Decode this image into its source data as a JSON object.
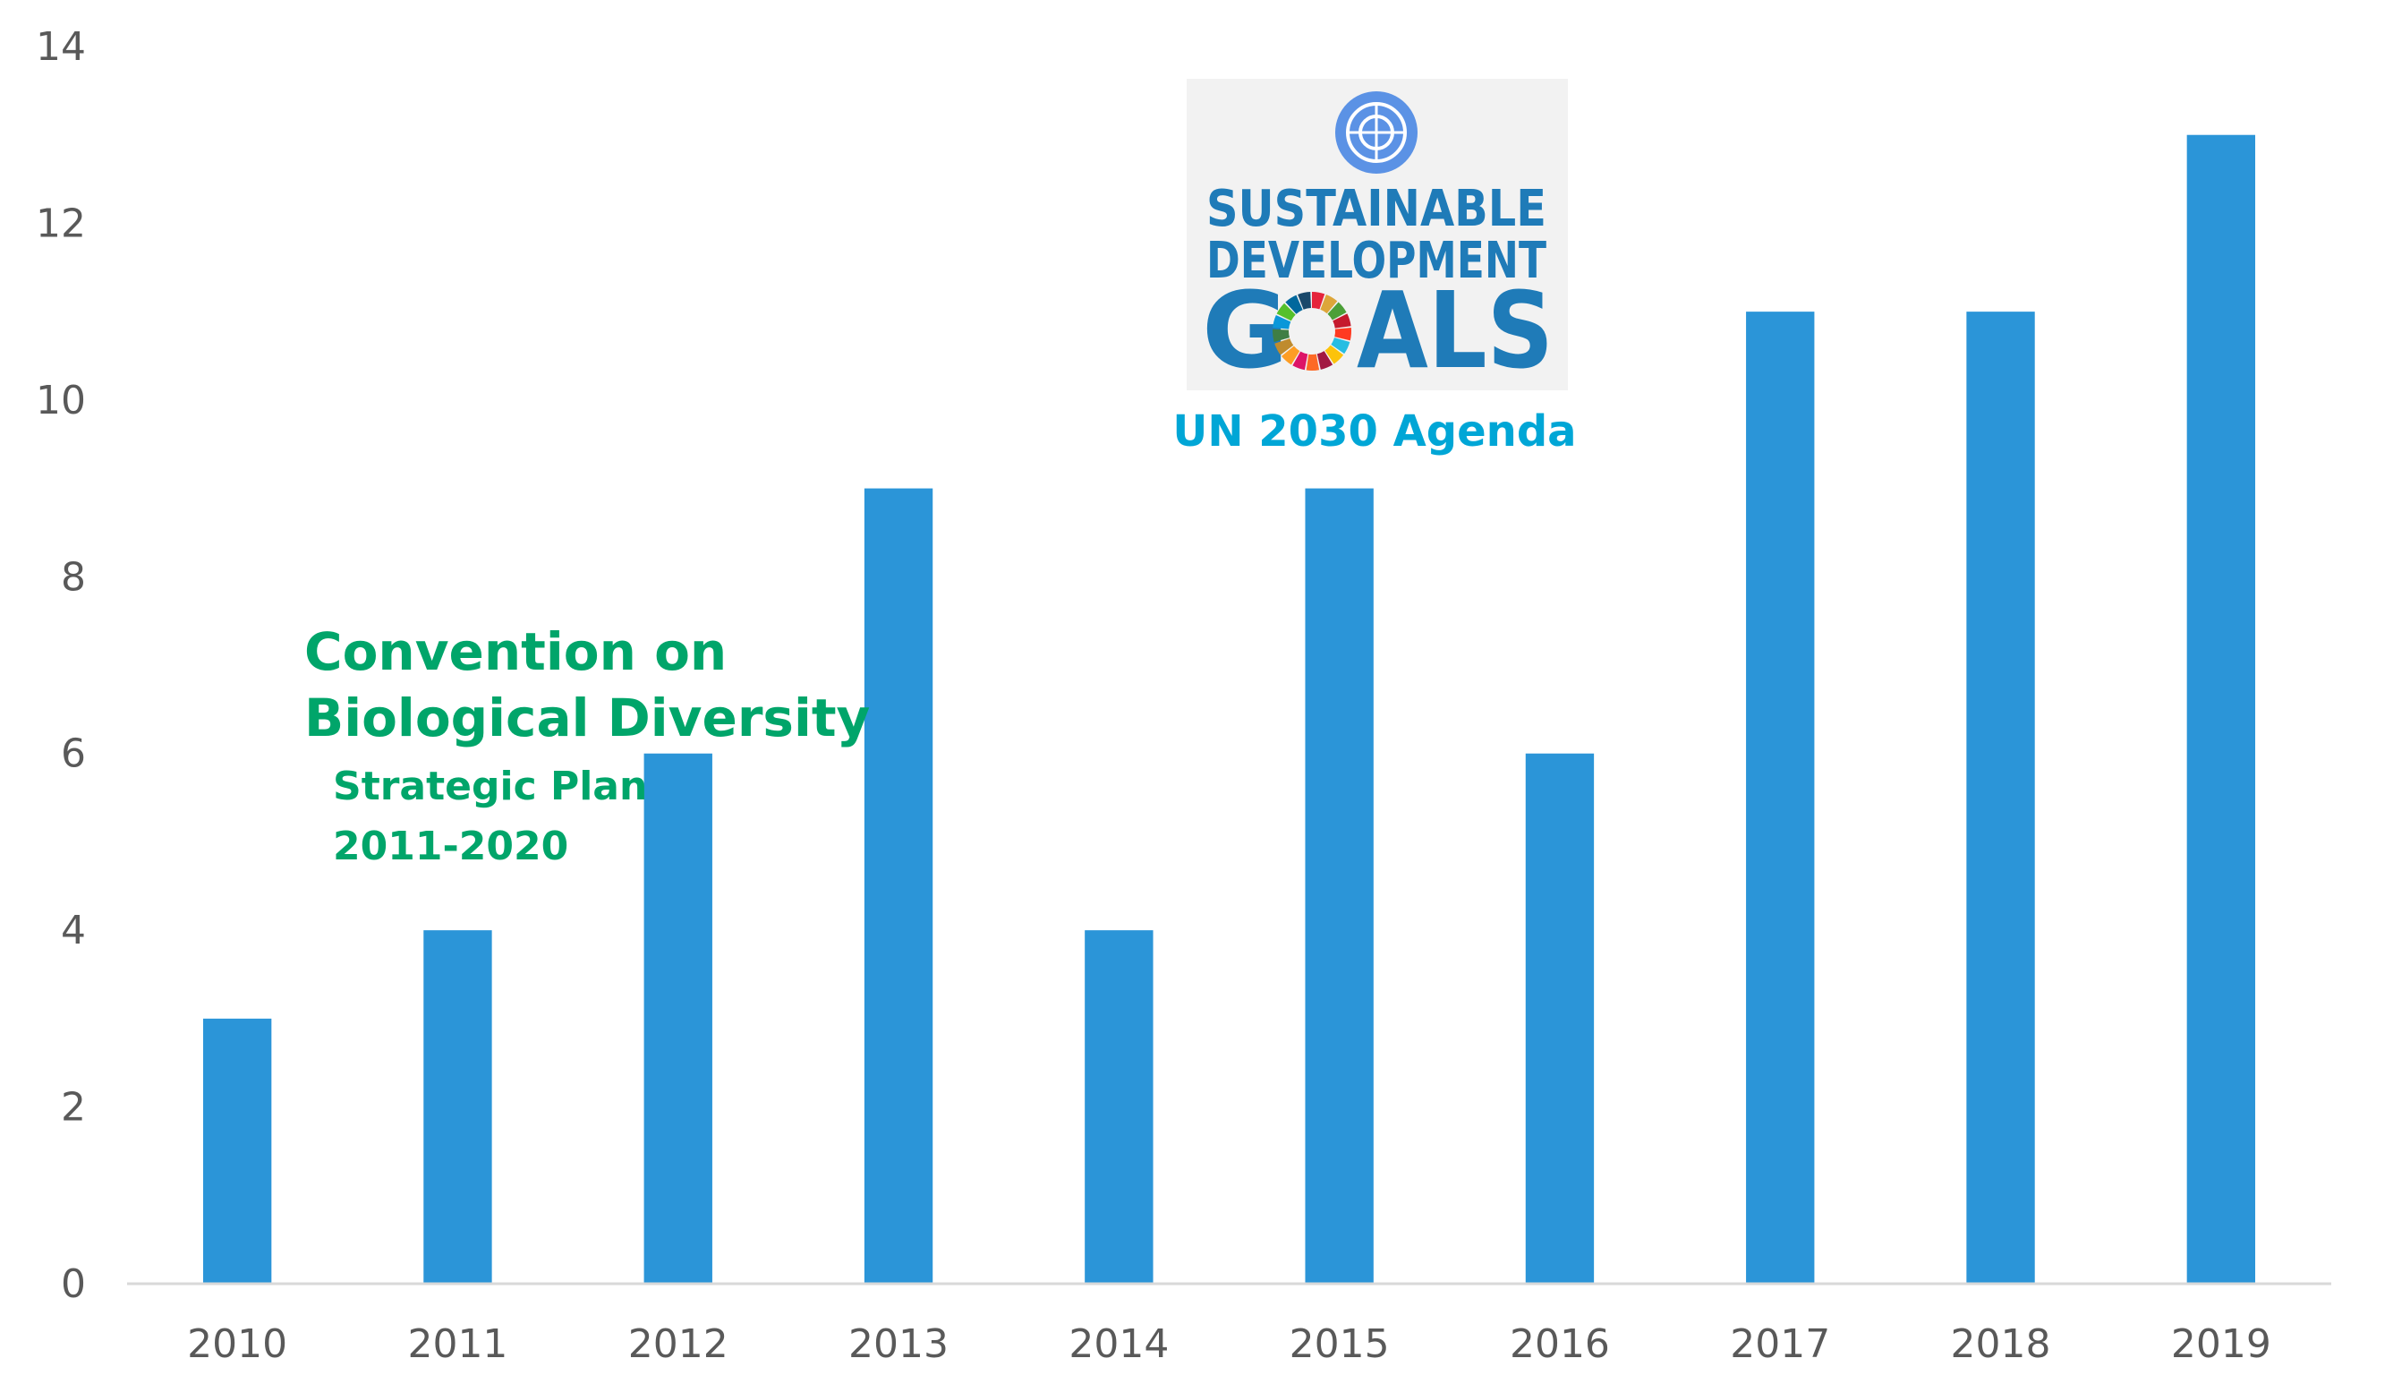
{
  "chart_data": {
    "type": "bar",
    "title": "",
    "xlabel": "",
    "ylabel": "",
    "categories": [
      "2010",
      "2011",
      "2012",
      "2013",
      "2014",
      "2015",
      "2016",
      "2017",
      "2018",
      "2019"
    ],
    "values": [
      3,
      4,
      6,
      9,
      4,
      9,
      6,
      11,
      11,
      13
    ],
    "ylim": [
      0,
      14
    ],
    "yticks": [
      "0",
      "2",
      "4",
      "6",
      "8",
      "10",
      "12",
      "14"
    ],
    "grid": false,
    "bar_color": "#2b95d8",
    "axis_color": "#d9d9d9",
    "annotations": {
      "cbd": {
        "line1": "Convention on",
        "line2": "Biological Diversity",
        "line3": "Strategic Plan",
        "line4": "2011-2020",
        "color": "#00a56a"
      },
      "sdg": {
        "line1": "SUSTAINABLE",
        "line2": "DEVELOPMENT",
        "goals_g": "G",
        "goals_rest": "ALS",
        "caption": "UN 2030 Agenda",
        "text_color": "#1f7bb8",
        "caption_color": "#00a6d6",
        "wheel_colors": [
          "#e5243b",
          "#dda63a",
          "#4c9f38",
          "#c5192d",
          "#ff3a21",
          "#26bde2",
          "#fcc30b",
          "#a21942",
          "#fd6925",
          "#dd1367",
          "#fd9d24",
          "#bf8b2e",
          "#3f7e44",
          "#0a97d9",
          "#56c02b",
          "#00689d",
          "#19486a"
        ]
      }
    }
  }
}
